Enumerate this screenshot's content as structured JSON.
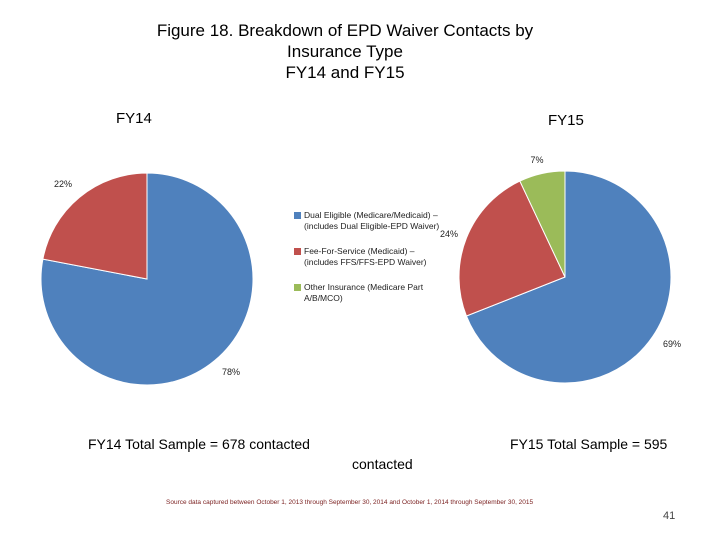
{
  "title_lines": [
    "Figure 18. Breakdown of EPD Waiver Contacts by",
    "Insurance Type",
    "FY14 and FY15"
  ],
  "legend": [
    {
      "label": "Dual Eligible (Medicare/Medicaid) – (includes Dual Eligible-EPD Waiver)",
      "color": "#4f81bd"
    },
    {
      "label": "Fee-For-Service (Medicaid) – (includes FFS/FFS-EPD Waiver)",
      "color": "#c0504d"
    },
    {
      "label": "Other Insurance (Medicare Part A/B/MCO)",
      "color": "#9bbb59"
    }
  ],
  "chart_data": [
    {
      "type": "pie",
      "title": "FY14",
      "categories": [
        "Dual Eligible (Medicare/Medicaid) – (includes Dual Eligible-EPD Waiver)",
        "Fee-For-Service (Medicaid) – (includes FFS/FFS-EPD Waiver)"
      ],
      "values": [
        78,
        22
      ],
      "labels": [
        "78%",
        "22%"
      ],
      "colors": [
        "#4f81bd",
        "#c0504d"
      ],
      "footnote": "FY14 Total Sample = 678 contacted"
    },
    {
      "type": "pie",
      "title": "FY15",
      "categories": [
        "Dual Eligible (Medicare/Medicaid) – (includes Dual Eligible-EPD Waiver)",
        "Fee-For-Service (Medicaid) – (includes FFS/FFS-EPD Waiver)",
        "Other Insurance (Medicare Part A/B/MCO)"
      ],
      "values": [
        69,
        24,
        7
      ],
      "labels": [
        "69%",
        "24%",
        "7%"
      ],
      "colors": [
        "#4f81bd",
        "#c0504d",
        "#9bbb59"
      ],
      "footnote": "FY15 Total Sample = 595"
    }
  ],
  "stray_text": "contacted",
  "source_note": "Source data captured between October 1, 2013 through September 30, 2014 and October 1, 2014 through September 30, 2015",
  "page_number": "41"
}
